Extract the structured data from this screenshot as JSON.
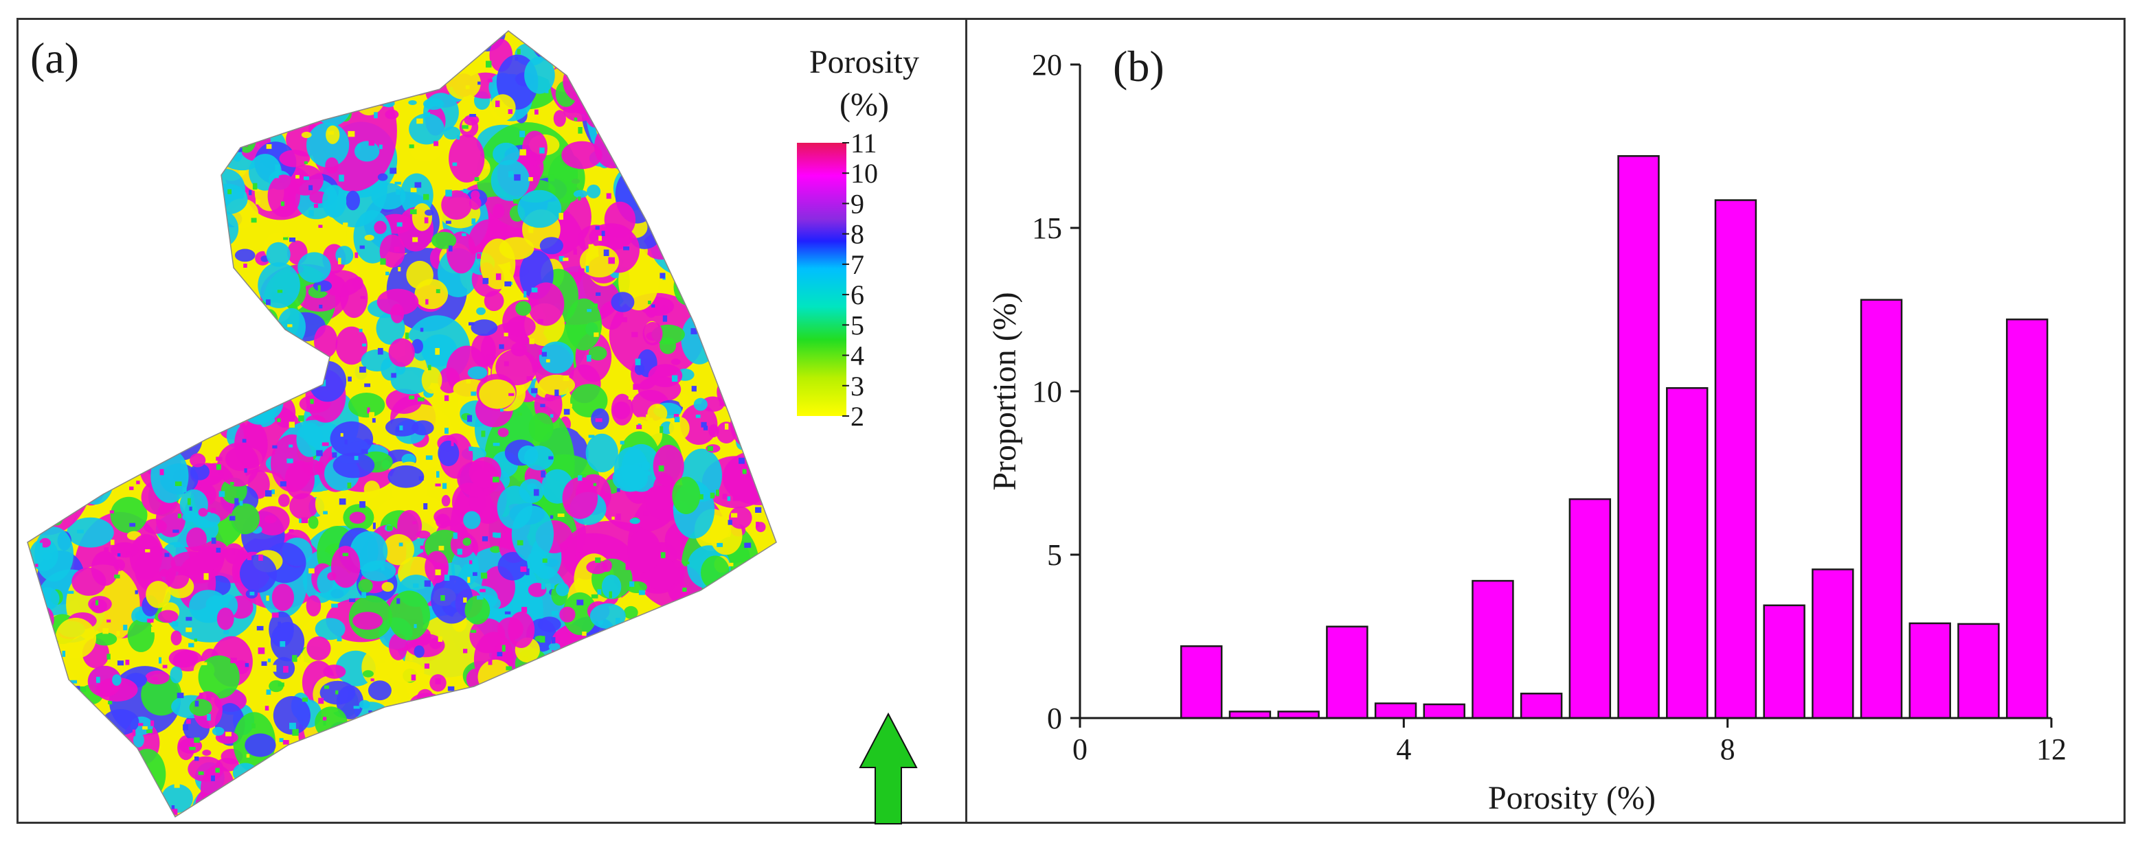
{
  "panel_a": {
    "label": "(a)",
    "colorbar": {
      "title_line1": "Porosity",
      "title_line2": "(%)",
      "ticks": [
        "11",
        "10",
        "9",
        "8",
        "7",
        "6",
        "5",
        "4",
        "3",
        "2"
      ],
      "colors": {
        "top": "#e8145a",
        "magenta": "#ff00ff",
        "purple": "#8a2be2",
        "blue": "#2020ff",
        "cyan": "#00bfff",
        "teal": "#00e5c0",
        "green": "#22dd22",
        "lime": "#b8f000",
        "yellow": "#ffff00"
      }
    },
    "map_colors": {
      "yellow": "#f5ee00",
      "magenta": "#ee10c8",
      "cyan": "#10c8e6",
      "blue": "#4040ff",
      "green": "#30e030"
    },
    "north_arrow_color": "#1ec81e"
  },
  "chart_data": {
    "type": "bar",
    "label": "(b)",
    "xlabel": "Porosity (%)",
    "ylabel": "Proportion (%)",
    "xlim": [
      0,
      12
    ],
    "ylim": [
      0,
      20
    ],
    "xticks": [
      "0",
      "4",
      "8",
      "12"
    ],
    "yticks": [
      "0",
      "5",
      "10",
      "15",
      "20"
    ],
    "bar_color": "#ff00ff",
    "bar_width": 0.5,
    "bars": [
      {
        "x": 1.5,
        "value": 2.2
      },
      {
        "x": 2.1,
        "value": 0.2
      },
      {
        "x": 2.7,
        "value": 0.2
      },
      {
        "x": 3.3,
        "value": 2.8
      },
      {
        "x": 3.9,
        "value": 0.45
      },
      {
        "x": 4.5,
        "value": 0.42
      },
      {
        "x": 5.1,
        "value": 4.2
      },
      {
        "x": 5.7,
        "value": 0.75
      },
      {
        "x": 6.3,
        "value": 6.7
      },
      {
        "x": 6.9,
        "value": 17.2
      },
      {
        "x": 7.5,
        "value": 10.1
      },
      {
        "x": 8.1,
        "value": 15.85
      },
      {
        "x": 8.7,
        "value": 3.45
      },
      {
        "x": 9.3,
        "value": 4.55
      },
      {
        "x": 9.9,
        "value": 12.8
      },
      {
        "x": 10.5,
        "value": 2.9
      },
      {
        "x": 11.1,
        "value": 2.88
      },
      {
        "x": 11.7,
        "value": 12.2
      }
    ]
  }
}
